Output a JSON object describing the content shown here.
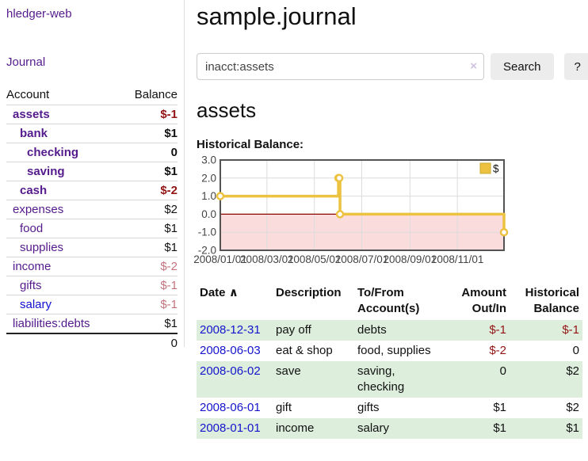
{
  "colors": {
    "accent_purple": "#551a8b",
    "link_blue": "#1414cc",
    "negative_red": "#941414",
    "negative_soft_red": "#c4737e",
    "row_stripe_green": "#ddeedd",
    "chart_series_yellow": "#edc240",
    "chart_negative_fill": "#fbdcdc",
    "chart_zero_line": "#8b0000"
  },
  "sidebar": {
    "brand": "hledger-web",
    "journal_link": "Journal",
    "account_header": "Account",
    "balance_header": "Balance",
    "accounts": [
      {
        "name": "assets",
        "balance": "$-1",
        "level": 1,
        "bold": true,
        "balance_tone": "neg-strong"
      },
      {
        "name": "bank",
        "balance": "$1",
        "level": 2,
        "bold": true,
        "balance_tone": ""
      },
      {
        "name": "checking",
        "balance": "0",
        "level": 3,
        "bold": true,
        "balance_tone": ""
      },
      {
        "name": "saving",
        "balance": "$1",
        "level": 3,
        "bold": true,
        "balance_tone": ""
      },
      {
        "name": "cash",
        "balance": "$-2",
        "level": 2,
        "bold": true,
        "balance_tone": "neg-strong"
      },
      {
        "name": "expenses",
        "balance": "$2",
        "level": 1,
        "bold": false,
        "balance_tone": ""
      },
      {
        "name": "food",
        "balance": "$1",
        "level": 2,
        "bold": false,
        "balance_tone": ""
      },
      {
        "name": "supplies",
        "balance": "$1",
        "level": 2,
        "bold": false,
        "balance_tone": ""
      },
      {
        "name": "income",
        "balance": "$-2",
        "level": 1,
        "bold": false,
        "balance_tone": "neg-soft"
      },
      {
        "name": "gifts",
        "balance": "$-1",
        "level": 2,
        "bold": false,
        "balance_tone": "neg-soft"
      },
      {
        "name": "salary",
        "balance": "$-1",
        "level": 2,
        "bold": false,
        "balance_tone": "neg-soft",
        "link_color": "blue"
      },
      {
        "name": "liabilities:debts",
        "balance": "$1",
        "level": 1,
        "bold": false,
        "balance_tone": "",
        "last": true
      }
    ],
    "total": "0"
  },
  "header": {
    "title": "sample.journal"
  },
  "search": {
    "query": "inacct:assets",
    "clear_icon": "×",
    "search_label": "Search",
    "help_label": "?"
  },
  "account_page": {
    "heading": "assets",
    "chart_title": "Historical Balance:"
  },
  "chart_data": {
    "type": "line",
    "title": "Historical Balance:",
    "step": true,
    "grid": true,
    "legend": {
      "label": "$",
      "position": "top-right"
    },
    "x_start": "2008-01-01",
    "x_end": "2008-12-31",
    "xticks": [
      "2008/01/01",
      "2008/03/01",
      "2008/05/01",
      "2008/07/01",
      "2008/09/01",
      "2008/11/01"
    ],
    "ytick_labels": [
      "3.0",
      "2.0",
      "1.0",
      "0.0",
      "-1.0",
      "-2.0"
    ],
    "ylim": [
      -2.0,
      3.0
    ],
    "series": [
      {
        "name": "$",
        "color": "#edc240",
        "points": [
          [
            "2008-01-01",
            1
          ],
          [
            "2008-06-01",
            2
          ],
          [
            "2008-06-02",
            2
          ],
          [
            "2008-06-03",
            0
          ],
          [
            "2008-12-31",
            -1
          ]
        ]
      }
    ],
    "zero_line_color": "#8b0000",
    "negative_region_fill": "#fbdcdc"
  },
  "register": {
    "columns": {
      "date": "Date",
      "sort_icon": "∧",
      "description": "Description",
      "accounts_line1": "To/From",
      "accounts_line2": "Account(s)",
      "amount_line1": "Amount",
      "amount_line2": "Out/In",
      "balance_line1": "Historical",
      "balance_line2": "Balance"
    },
    "rows": [
      {
        "date": "2008-12-31",
        "description": "pay off",
        "accounts": "debts",
        "amount": "$-1",
        "amount_neg": true,
        "balance": "$-1",
        "balance_neg": true
      },
      {
        "date": "2008-06-03",
        "description": "eat & shop",
        "accounts": "food, supplies",
        "amount": "$-2",
        "amount_neg": true,
        "balance": "0",
        "balance_neg": false
      },
      {
        "date": "2008-06-02",
        "description": "save",
        "accounts": "saving, checking",
        "amount": "0",
        "amount_neg": false,
        "balance": "$2",
        "balance_neg": false
      },
      {
        "date": "2008-06-01",
        "description": "gift",
        "accounts": "gifts",
        "amount": "$1",
        "amount_neg": false,
        "balance": "$2",
        "balance_neg": false
      },
      {
        "date": "2008-01-01",
        "description": "income",
        "accounts": "salary",
        "amount": "$1",
        "amount_neg": false,
        "balance": "$1",
        "balance_neg": false
      }
    ]
  }
}
